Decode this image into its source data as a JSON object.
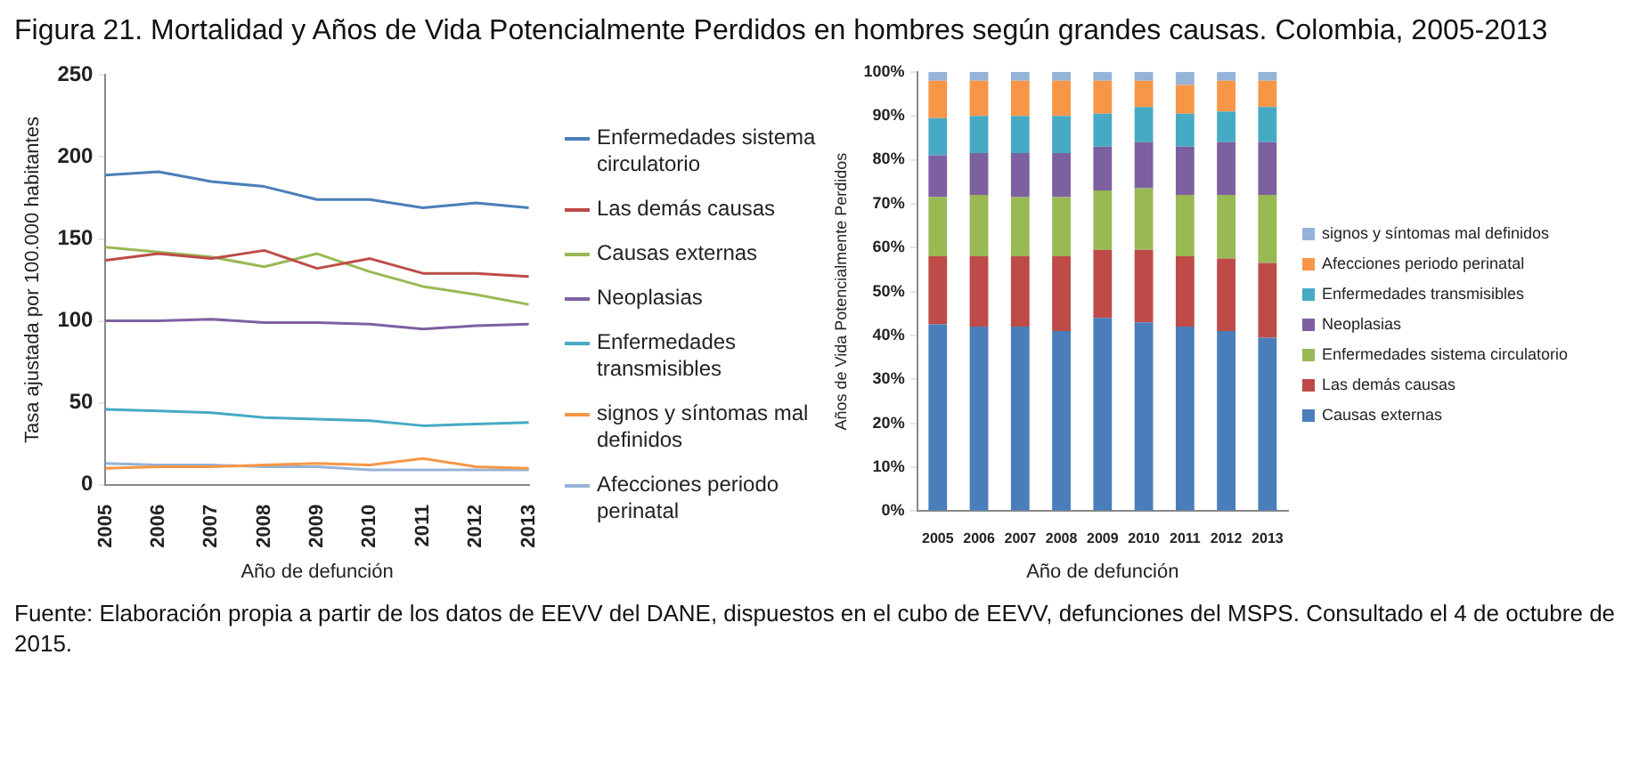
{
  "chart_data": [
    {
      "type": "line",
      "title": "Figura 21. Mortalidad y Años de Vida Potencialmente Perdidos en hombres según grandes causas. Colombia, 2005-2013",
      "xlabel": "Año de defunción",
      "ylabel": "Tasa ajustada por 100.000 habitantes",
      "categories": [
        "2005",
        "2006",
        "2007",
        "2008",
        "2009",
        "2010",
        "2011",
        "2012",
        "2013"
      ],
      "ylim": [
        0,
        250
      ],
      "yticks": [
        0,
        50,
        100,
        150,
        200,
        250
      ],
      "grid": false,
      "legend": "right",
      "annotations": [
        "Fuente: Elaboración propia a partir de los datos de EEVV del DANE, dispuestos en el cubo de EEVV, defunciones del MSPS. Consultado el 4 de octubre de 2015."
      ],
      "series": [
        {
          "name": "Enfermedades sistema circulatorio",
          "color": "#4a7ebb",
          "values": [
            189,
            191,
            185,
            182,
            174,
            174,
            169,
            172,
            169
          ]
        },
        {
          "name": "Las demás causas",
          "color": "#be4b48",
          "values": [
            137,
            141,
            138,
            143,
            132,
            138,
            129,
            129,
            127
          ]
        },
        {
          "name": "Causas externas",
          "color": "#98b954",
          "values": [
            145,
            142,
            139,
            133,
            141,
            130,
            121,
            116,
            110
          ]
        },
        {
          "name": "Neoplasias",
          "color": "#7d60a0",
          "values": [
            100,
            100,
            101,
            99,
            99,
            98,
            95,
            97,
            98
          ]
        },
        {
          "name": "Enfermedades transmisibles",
          "color": "#46aac5",
          "values": [
            46,
            45,
            44,
            41,
            40,
            39,
            36,
            37,
            38
          ]
        },
        {
          "name": "signos y síntomas mal definidos",
          "color": "#f79646",
          "values": [
            10,
            11,
            11,
            12,
            13,
            12,
            16,
            11,
            10
          ]
        },
        {
          "name": "Afecciones periodo perinatal",
          "color": "#95b3d7",
          "values": [
            13,
            12,
            12,
            11,
            11,
            9,
            9,
            9,
            9
          ]
        }
      ]
    },
    {
      "type": "bar",
      "stacked": true,
      "xlabel": "Año de defunción",
      "ylabel": "Años de Vida Potencialmente Perdidos",
      "categories": [
        "2005",
        "2006",
        "2007",
        "2008",
        "2009",
        "2010",
        "2011",
        "2012",
        "2013"
      ],
      "ylim": [
        0,
        100
      ],
      "yticks": [
        {
          "value": 0,
          "label": "0%"
        },
        {
          "value": 10,
          "label": "10%"
        },
        {
          "value": 20,
          "label": "20%"
        },
        {
          "value": 30,
          "label": "30%"
        },
        {
          "value": 40,
          "label": "40%"
        },
        {
          "value": 50,
          "label": "50%"
        },
        {
          "value": 60,
          "label": "60%"
        },
        {
          "value": 70,
          "label": "70%"
        },
        {
          "value": 80,
          "label": "80%"
        },
        {
          "value": 90,
          "label": "90%"
        },
        {
          "value": 100,
          "label": "100%"
        }
      ],
      "grid": false,
      "legend": "right",
      "series": [
        {
          "name": "Causas externas",
          "color": "#4a7ebb",
          "values": [
            42.5,
            42,
            42,
            41,
            44,
            43,
            42,
            41,
            39.5
          ]
        },
        {
          "name": "Las demás causas",
          "color": "#be4b48",
          "values": [
            15.5,
            16,
            16,
            17,
            15.5,
            16.5,
            16,
            16.5,
            17
          ]
        },
        {
          "name": "Enfermedades sistema circulatorio",
          "color": "#98b954",
          "values": [
            13.5,
            14,
            13.5,
            13.5,
            13.5,
            14,
            14,
            14.5,
            15.5
          ]
        },
        {
          "name": "Neoplasias",
          "color": "#7d60a0",
          "values": [
            9.5,
            9.5,
            10,
            10,
            10,
            10.5,
            11,
            12,
            12
          ]
        },
        {
          "name": "Enfermedades transmisibles",
          "color": "#46aac5",
          "values": [
            8.5,
            8.5,
            8.5,
            8.5,
            7.5,
            8,
            7.5,
            7,
            8
          ]
        },
        {
          "name": "Afecciones periodo perinatal",
          "color": "#f79646",
          "values": [
            8.5,
            8,
            8,
            8,
            7.5,
            6,
            6.5,
            7,
            6
          ]
        },
        {
          "name": "signos y síntomas mal definidos",
          "color": "#95b3d7",
          "values": [
            2,
            2,
            2,
            2,
            2,
            2,
            3,
            2,
            2
          ]
        }
      ]
    }
  ]
}
